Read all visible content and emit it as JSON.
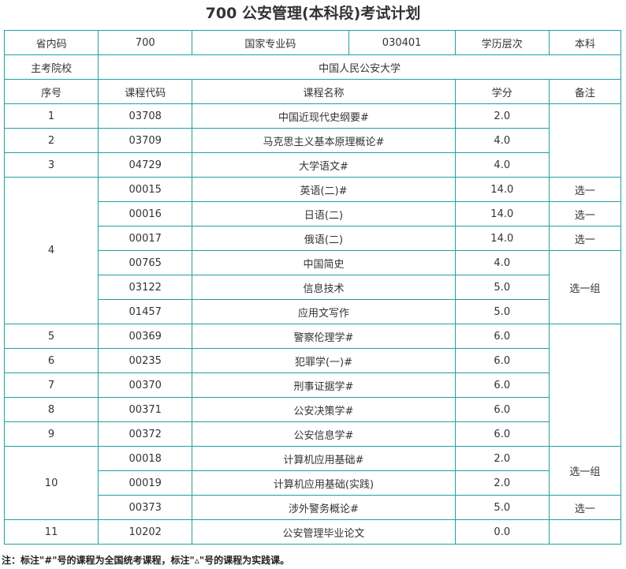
{
  "title": "700 公安管理(本科段)考试计划",
  "header": {
    "province_code_label": "省内码",
    "province_code": "700",
    "national_code_label": "国家专业码",
    "national_code": "030401",
    "level_label": "学历层次",
    "level": "本科",
    "school_label": "主考院校",
    "school": "中国人民公安大学"
  },
  "columns": {
    "seq": "序号",
    "code": "课程代码",
    "name": "课程名称",
    "credit": "学分",
    "remark": "备注"
  },
  "rows": [
    {
      "seq": "1",
      "code": "03708",
      "name": "中国近现代史纲要#",
      "credit": "2.0",
      "remark": ""
    },
    {
      "seq": "2",
      "code": "03709",
      "name": "马克思主义基本原理概论#",
      "credit": "4.0",
      "remark": ""
    },
    {
      "seq": "3",
      "code": "04729",
      "name": "大学语文#",
      "credit": "4.0",
      "remark": ""
    },
    {
      "seq": "4",
      "code": "00015",
      "name": "英语(二)#",
      "credit": "14.0",
      "remark": "选一"
    },
    {
      "seq": "",
      "code": "00016",
      "name": "日语(二)",
      "credit": "14.0",
      "remark": "选一"
    },
    {
      "seq": "",
      "code": "00017",
      "name": "俄语(二)",
      "credit": "14.0",
      "remark": "选一"
    },
    {
      "seq": "",
      "code": "00765",
      "name": "中国简史",
      "credit": "4.0",
      "remark": "选一组"
    },
    {
      "seq": "",
      "code": "03122",
      "name": "信息技术",
      "credit": "5.0",
      "remark": ""
    },
    {
      "seq": "",
      "code": "01457",
      "name": "应用文写作",
      "credit": "5.0",
      "remark": ""
    },
    {
      "seq": "5",
      "code": "00369",
      "name": "警察伦理学#",
      "credit": "6.0",
      "remark": ""
    },
    {
      "seq": "6",
      "code": "00235",
      "name": "犯罪学(一)#",
      "credit": "6.0",
      "remark": ""
    },
    {
      "seq": "7",
      "code": "00370",
      "name": "刑事证据学#",
      "credit": "6.0",
      "remark": ""
    },
    {
      "seq": "8",
      "code": "00371",
      "name": "公安决策学#",
      "credit": "6.0",
      "remark": ""
    },
    {
      "seq": "9",
      "code": "00372",
      "name": "公安信息学#",
      "credit": "6.0",
      "remark": ""
    },
    {
      "seq": "10",
      "code": "00018",
      "name": "计算机应用基础#",
      "credit": "2.0",
      "remark": "选一组"
    },
    {
      "seq": "",
      "code": "00019",
      "name": "计算机应用基础(实践)",
      "credit": "2.0",
      "remark": ""
    },
    {
      "seq": "",
      "code": "00373",
      "name": "涉外警务概论#",
      "credit": "5.0",
      "remark": "选一"
    },
    {
      "seq": "11",
      "code": "10202",
      "name": "公安管理毕业论文",
      "credit": "0.0",
      "remark": ""
    }
  ],
  "note": "注：标注\"#\"号的课程为全国统考课程，标注\"▵\"号的课程为实践课。",
  "colors": {
    "border": "#21a0a0",
    "text": "#333333"
  }
}
